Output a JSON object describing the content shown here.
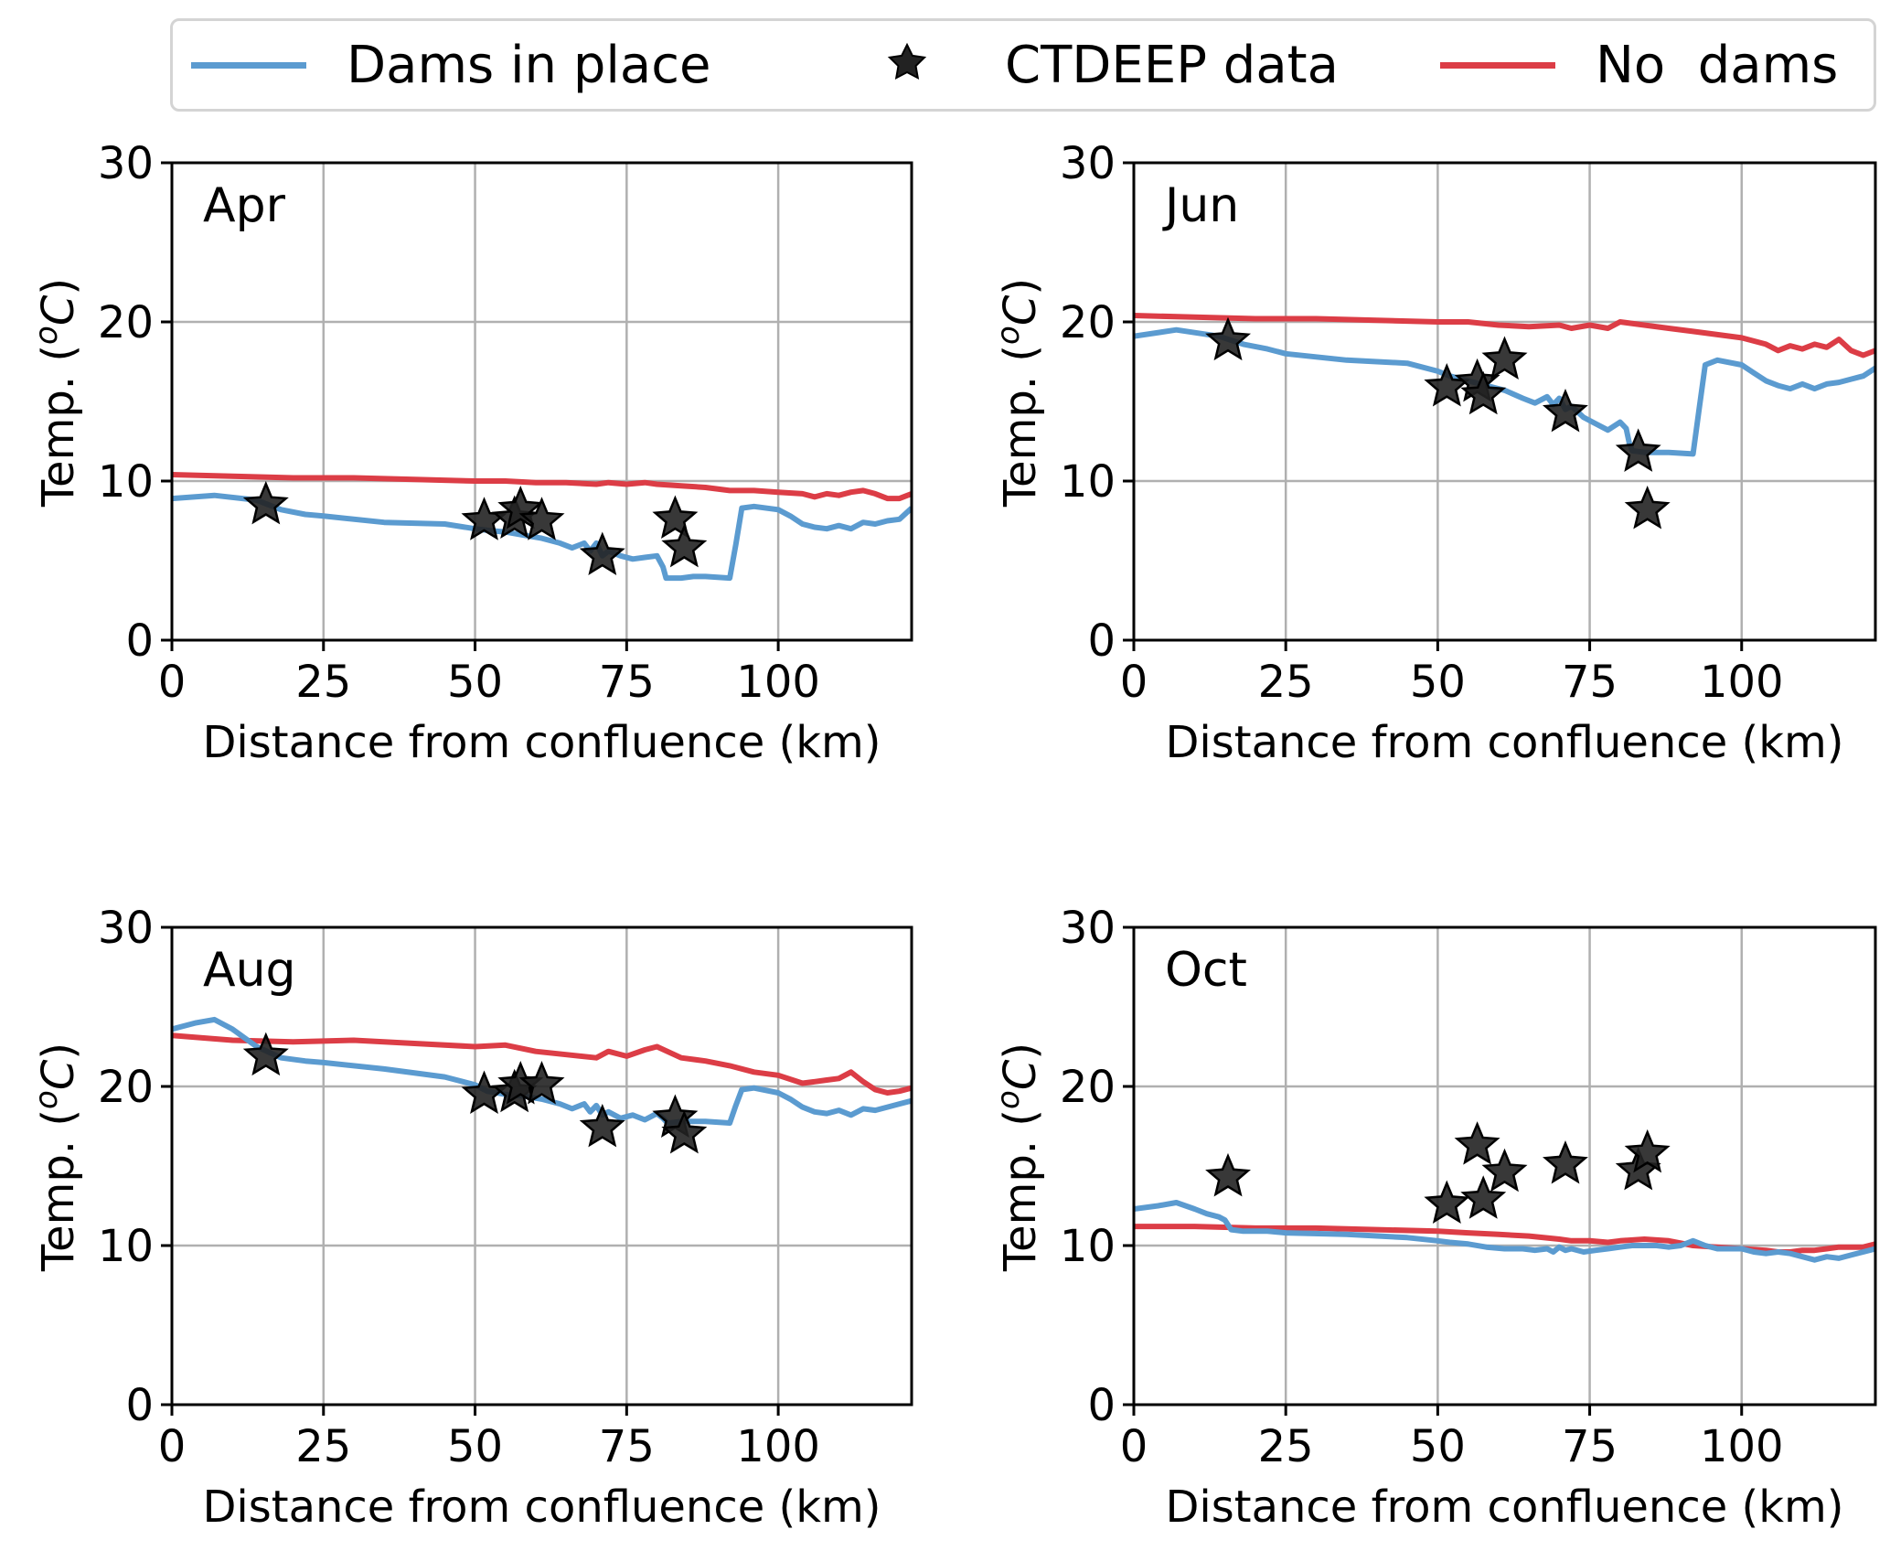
{
  "legend": {
    "dams": "Dams in place",
    "obs": "CTDEEP data",
    "nodams": "No  dams",
    "colors": {
      "dams": "#5b9bd0",
      "nodams": "#dc3d46",
      "obs": "#222222"
    }
  },
  "chart_data": [
    {
      "type": "line",
      "title": "Apr",
      "xlabel": "Distance from confluence (km)",
      "ylabel": "Temp. (",
      "ylabel_sup": "o",
      "ylabel_unit": "C",
      "ylabel_close": ")",
      "xlim": [
        0,
        122
      ],
      "ylim": [
        0,
        30
      ],
      "xticks": [
        0,
        25,
        50,
        75,
        100
      ],
      "yticks": [
        0,
        10,
        20,
        30
      ],
      "grid": true,
      "series": [
        {
          "name": "Dams in place",
          "x": [
            0,
            7,
            14,
            18,
            22,
            25,
            35,
            45,
            50,
            52,
            55,
            58,
            61,
            64,
            66,
            68,
            69,
            70,
            71,
            72,
            74,
            76,
            78,
            80,
            81,
            81.5,
            82,
            84,
            86,
            88,
            92,
            93,
            94,
            96,
            100,
            102,
            104,
            106,
            108,
            110,
            112,
            114,
            116,
            118,
            120,
            122
          ],
          "y": [
            8.9,
            9.1,
            8.8,
            8.2,
            7.9,
            7.8,
            7.4,
            7.3,
            7,
            6.9,
            6.8,
            6.6,
            6.4,
            6.1,
            5.8,
            6.1,
            5.6,
            6.1,
            5.3,
            5.6,
            5.3,
            5.1,
            5.2,
            5.3,
            4.6,
            3.9,
            3.9,
            3.9,
            4.0,
            4.0,
            3.9,
            6.0,
            8.3,
            8.4,
            8.2,
            7.8,
            7.3,
            7.1,
            7.0,
            7.2,
            7.0,
            7.4,
            7.3,
            7.5,
            7.6,
            8.3
          ]
        },
        {
          "name": "No  dams",
          "x": [
            0,
            10,
            20,
            30,
            40,
            50,
            55,
            60,
            65,
            70,
            72,
            75,
            78,
            80,
            84,
            88,
            92,
            96,
            100,
            104,
            106,
            108,
            110,
            112,
            114,
            116,
            118,
            120,
            122
          ],
          "y": [
            10.4,
            10.3,
            10.2,
            10.2,
            10.1,
            10.0,
            10.0,
            9.9,
            9.9,
            9.8,
            9.9,
            9.8,
            9.9,
            9.8,
            9.7,
            9.6,
            9.4,
            9.4,
            9.3,
            9.2,
            9.0,
            9.2,
            9.1,
            9.3,
            9.4,
            9.2,
            8.9,
            8.9,
            9.2
          ]
        }
      ],
      "points": {
        "name": "CTDEEP data",
        "x": [
          15.5,
          51.5,
          56.5,
          57.5,
          61,
          71,
          83,
          84.5
        ],
        "y": [
          8.5,
          7.5,
          7.6,
          8.2,
          7.5,
          5.3,
          7.6,
          5.8
        ]
      }
    },
    {
      "type": "line",
      "title": "Jun",
      "xlabel": "Distance from confluence (km)",
      "ylabel": "Temp. (",
      "ylabel_sup": "o",
      "ylabel_unit": "C",
      "ylabel_close": ")",
      "xlim": [
        0,
        122
      ],
      "ylim": [
        0,
        30
      ],
      "xticks": [
        0,
        25,
        50,
        75,
        100
      ],
      "yticks": [
        0,
        10,
        20,
        30
      ],
      "grid": true,
      "series": [
        {
          "name": "Dams in place",
          "x": [
            0,
            7,
            14,
            18,
            22,
            25,
            35,
            45,
            50,
            52,
            55,
            58,
            61,
            64,
            66,
            68,
            69,
            70,
            71,
            72,
            74,
            76,
            78,
            80,
            81,
            81.5,
            82,
            84,
            86,
            88,
            92,
            93,
            94,
            96,
            100,
            102,
            104,
            106,
            108,
            110,
            112,
            114,
            116,
            118,
            120,
            122
          ],
          "y": [
            19.1,
            19.5,
            19.1,
            18.6,
            18.3,
            18.0,
            17.6,
            17.4,
            16.9,
            16.6,
            16.3,
            16.0,
            15.7,
            15.2,
            14.9,
            15.3,
            14.8,
            15.2,
            14.5,
            14.7,
            14.0,
            13.6,
            13.2,
            13.7,
            13.3,
            12.4,
            11.9,
            11.8,
            11.8,
            11.8,
            11.7,
            14.5,
            17.3,
            17.6,
            17.3,
            16.8,
            16.3,
            16.0,
            15.8,
            16.1,
            15.8,
            16.1,
            16.2,
            16.4,
            16.6,
            17.1
          ]
        },
        {
          "name": "No  dams",
          "x": [
            0,
            10,
            20,
            30,
            40,
            50,
            55,
            60,
            65,
            70,
            72,
            75,
            78,
            80,
            84,
            88,
            92,
            96,
            100,
            104,
            106,
            108,
            110,
            112,
            114,
            116,
            118,
            120,
            122
          ],
          "y": [
            20.4,
            20.3,
            20.2,
            20.2,
            20.1,
            20.0,
            20.0,
            19.8,
            19.7,
            19.8,
            19.6,
            19.8,
            19.6,
            20.0,
            19.8,
            19.6,
            19.4,
            19.2,
            19.0,
            18.6,
            18.2,
            18.5,
            18.3,
            18.6,
            18.4,
            18.9,
            18.2,
            17.9,
            18.2
          ]
        }
      ],
      "points": {
        "name": "CTDEEP data",
        "x": [
          15.5,
          51.5,
          56.5,
          57.5,
          61,
          71,
          83,
          84.5
        ],
        "y": [
          18.8,
          15.9,
          16.2,
          15.4,
          17.6,
          14.3,
          11.8,
          8.2
        ]
      }
    },
    {
      "type": "line",
      "title": "Aug",
      "xlabel": "Distance from confluence (km)",
      "ylabel": "Temp. (",
      "ylabel_sup": "o",
      "ylabel_unit": "C",
      "ylabel_close": ")",
      "xlim": [
        0,
        122
      ],
      "ylim": [
        0,
        30
      ],
      "xticks": [
        0,
        25,
        50,
        75,
        100
      ],
      "yticks": [
        0,
        10,
        20,
        30
      ],
      "grid": true,
      "series": [
        {
          "name": "Dams in place",
          "x": [
            0,
            4,
            7,
            10,
            14,
            18,
            22,
            25,
            35,
            45,
            50,
            52,
            55,
            58,
            61,
            64,
            66,
            68,
            69,
            70,
            71,
            72,
            74,
            76,
            78,
            80,
            81,
            81.5,
            82,
            84,
            86,
            88,
            92,
            93,
            94,
            96,
            100,
            102,
            104,
            106,
            108,
            110,
            112,
            114,
            116,
            118,
            120,
            122
          ],
          "y": [
            23.6,
            24.0,
            24.2,
            23.6,
            22.5,
            21.8,
            21.6,
            21.5,
            21.1,
            20.6,
            20.1,
            19.7,
            19.5,
            19.4,
            19.2,
            18.9,
            18.6,
            18.9,
            18.4,
            18.8,
            18.2,
            18.4,
            18.0,
            18.2,
            17.9,
            18.3,
            18.0,
            17.8,
            17.7,
            17.8,
            17.8,
            17.8,
            17.7,
            18.8,
            19.8,
            19.9,
            19.6,
            19.2,
            18.7,
            18.4,
            18.3,
            18.5,
            18.2,
            18.6,
            18.5,
            18.7,
            18.9,
            19.1
          ]
        },
        {
          "name": "No  dams",
          "x": [
            0,
            10,
            20,
            30,
            40,
            50,
            55,
            60,
            65,
            70,
            72,
            75,
            78,
            80,
            84,
            88,
            92,
            96,
            100,
            104,
            106,
            108,
            110,
            112,
            114,
            116,
            118,
            120,
            122
          ],
          "y": [
            23.2,
            22.9,
            22.8,
            22.9,
            22.7,
            22.5,
            22.6,
            22.2,
            22.0,
            21.8,
            22.2,
            21.9,
            22.3,
            22.5,
            21.8,
            21.6,
            21.3,
            20.9,
            20.7,
            20.2,
            20.3,
            20.4,
            20.5,
            20.9,
            20.3,
            19.8,
            19.6,
            19.7,
            19.9
          ]
        }
      ],
      "points": {
        "name": "CTDEEP data",
        "x": [
          15.5,
          51.5,
          56.5,
          57.5,
          61,
          71,
          83,
          84.5
        ],
        "y": [
          21.9,
          19.5,
          19.6,
          20.1,
          20.1,
          17.4,
          18.0,
          17.0
        ]
      }
    },
    {
      "type": "line",
      "title": "Oct",
      "xlabel": "Distance from confluence (km)",
      "ylabel": "Temp. (",
      "ylabel_sup": "o",
      "ylabel_unit": "C",
      "ylabel_close": ")",
      "xlim": [
        0,
        122
      ],
      "ylim": [
        0,
        30
      ],
      "xticks": [
        0,
        25,
        50,
        75,
        100
      ],
      "yticks": [
        0,
        10,
        20,
        30
      ],
      "grid": true,
      "series": [
        {
          "name": "Dams in place",
          "x": [
            0,
            4,
            7,
            10,
            12,
            14,
            15,
            16,
            18,
            22,
            25,
            35,
            45,
            50,
            52,
            55,
            58,
            61,
            64,
            66,
            68,
            69,
            70,
            71,
            72,
            74,
            76,
            78,
            80,
            82,
            84,
            86,
            88,
            90,
            92,
            94,
            96,
            100,
            102,
            104,
            106,
            108,
            110,
            112,
            114,
            116,
            118,
            120,
            122
          ],
          "y": [
            12.3,
            12.5,
            12.7,
            12.3,
            12.0,
            11.8,
            11.6,
            11.0,
            10.9,
            10.9,
            10.8,
            10.7,
            10.5,
            10.3,
            10.2,
            10.1,
            9.9,
            9.8,
            9.8,
            9.7,
            9.8,
            9.6,
            9.9,
            9.7,
            9.8,
            9.6,
            9.7,
            9.8,
            9.9,
            10.0,
            10.0,
            10.0,
            9.9,
            10.0,
            10.3,
            10.0,
            9.8,
            9.8,
            9.6,
            9.5,
            9.6,
            9.5,
            9.3,
            9.1,
            9.3,
            9.2,
            9.4,
            9.6,
            9.8
          ]
        },
        {
          "name": "No  dams",
          "x": [
            0,
            10,
            20,
            30,
            40,
            50,
            55,
            60,
            65,
            70,
            72,
            75,
            78,
            80,
            84,
            88,
            92,
            96,
            100,
            104,
            106,
            108,
            110,
            112,
            114,
            116,
            118,
            120,
            122
          ],
          "y": [
            11.2,
            11.2,
            11.1,
            11.1,
            11.0,
            10.9,
            10.8,
            10.7,
            10.6,
            10.4,
            10.3,
            10.3,
            10.2,
            10.3,
            10.4,
            10.3,
            10.0,
            9.9,
            9.8,
            9.7,
            9.6,
            9.6,
            9.7,
            9.7,
            9.8,
            9.9,
            9.9,
            9.9,
            10.1
          ]
        }
      ],
      "points": {
        "name": "CTDEEP data",
        "x": [
          15.5,
          51.5,
          56.5,
          57.5,
          61,
          71,
          83,
          84.5
        ],
        "y": [
          14.3,
          12.6,
          16.3,
          12.9,
          14.6,
          15.1,
          14.7,
          15.8
        ]
      }
    }
  ]
}
